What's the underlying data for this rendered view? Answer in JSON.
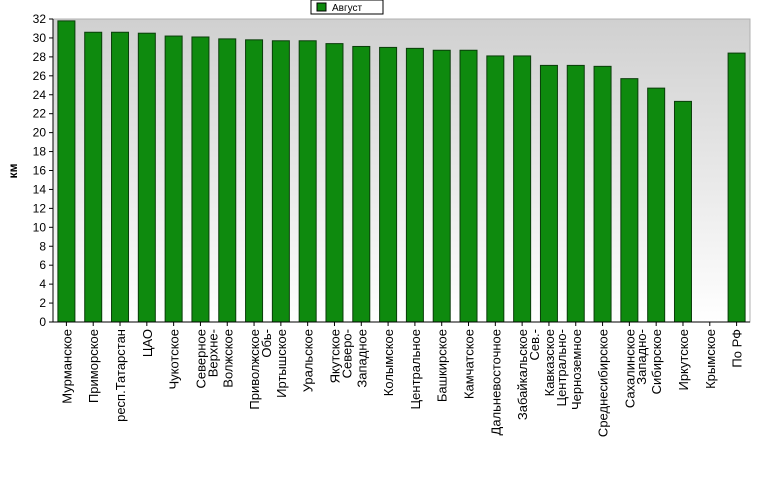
{
  "chart_data": {
    "type": "bar",
    "xlabel": "",
    "ylabel": "км",
    "ylim": [
      0,
      32
    ],
    "yticks": [
      0,
      2,
      4,
      6,
      8,
      10,
      12,
      14,
      16,
      18,
      20,
      22,
      24,
      26,
      28,
      30,
      32
    ],
    "grid": false,
    "legend_position": "top",
    "categories": [
      "Мурманское",
      "Приморское",
      "респ.Татарстан",
      "ЦАО",
      "Чукотское",
      "Северное",
      "Верхне-\nВолжское",
      "Приволжское",
      "Обь-\nИртышское",
      "Уральское",
      "Якутское",
      "Северо-\nЗападное",
      "Колымское",
      "Центральное",
      "Башкирское",
      "Камчатское",
      "Дальневосточное",
      "Забайкальское",
      "Сев.-\nКавказское",
      "Центрально-\nЧерноземное",
      "Среднесибирское",
      "Сахалинское",
      "Западно-\nСибирское",
      "Иркутское",
      "Крымское",
      "По РФ"
    ],
    "series": [
      {
        "name": "Август",
        "color": "#0e8a0e",
        "values": [
          31.8,
          30.6,
          30.6,
          30.5,
          30.2,
          30.1,
          29.9,
          29.8,
          29.7,
          29.7,
          29.4,
          29.1,
          29.0,
          28.9,
          28.7,
          28.7,
          28.1,
          28.1,
          27.1,
          27.1,
          27.0,
          25.7,
          24.7,
          23.3,
          null,
          28.4
        ]
      }
    ]
  },
  "colors": {
    "plot_background_top": "#d0d0d0",
    "plot_background_bottom": "#ffffff",
    "bar_fill": "#0e8a0e",
    "bar_stroke": "#0a3d0a"
  }
}
